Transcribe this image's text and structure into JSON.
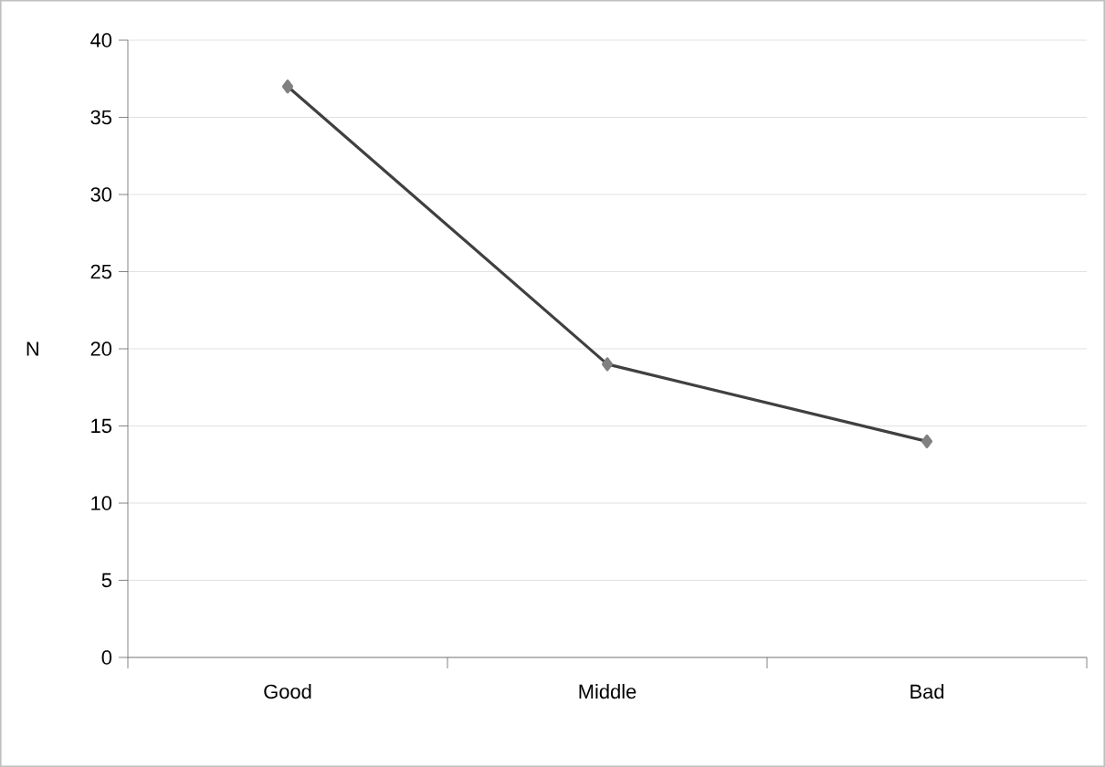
{
  "chart_data": {
    "type": "line",
    "ylabel": "N",
    "categories": [
      "Good",
      "Middle",
      "Bad"
    ],
    "series": [
      {
        "color": "#404040",
        "values": [
          37,
          19,
          14
        ]
      }
    ],
    "ylim": [
      0,
      40
    ],
    "yticks": [
      0,
      5,
      10,
      15,
      20,
      25,
      30,
      35,
      40
    ],
    "grid": "y",
    "marker": "diamond",
    "line_style": "solid"
  }
}
